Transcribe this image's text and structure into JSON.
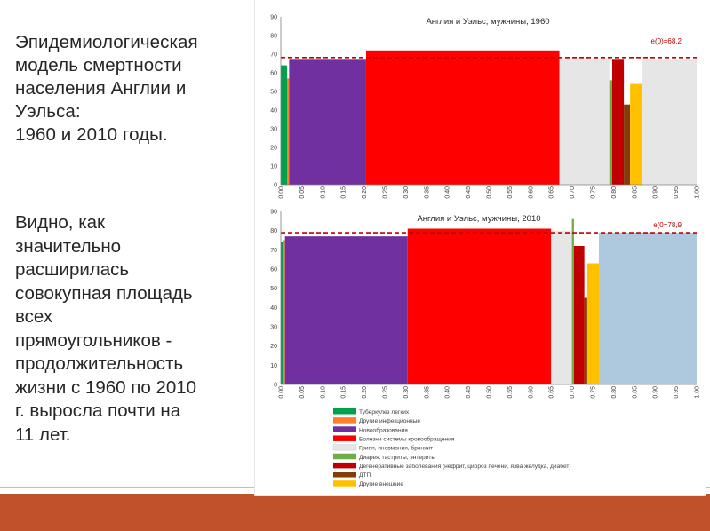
{
  "slide": {
    "title_lines": [
      "Эпидемиологическая",
      "модель смертности",
      "населения Англии и",
      "Уэльса:",
      "1960 и 2010 годы."
    ],
    "body_lines": [
      "Видно, как",
      "значительно",
      "расширилась",
      "совокупная площадь",
      "всех",
      "прямоугольников -",
      "продолжительность",
      "жизни с 1960 по 2010",
      "г.  выросла почти на",
      "11 лет."
    ]
  },
  "colors": {
    "tuberculosis": "#00a14b",
    "other_infectious": "#ff7d2b",
    "neoplasms": "#7030a0",
    "circulatory": "#ff0000",
    "flu_pneumonia": "#e6e6e6",
    "diarrhea": "#70ad47",
    "degenerative": "#c00000",
    "road_accidents": "#843c0c",
    "other_external": "#ffc000",
    "light_blue": "#aec8dd",
    "reference_line": "#c00000",
    "bottom_band": "#c0522b"
  },
  "chart_data": [
    {
      "type": "bar",
      "title": "Англия и Уэльс, мужчины, 1960",
      "annotation": "e(0)=68,2",
      "reference_line_value": 68.2,
      "ylim": [
        0,
        90
      ],
      "yticks": [
        "0",
        "10",
        "20",
        "30",
        "40",
        "50",
        "60",
        "70",
        "80",
        "90"
      ],
      "xlim": [
        0,
        1
      ],
      "xticks": [
        "0.00",
        "0.05",
        "0.10",
        "0.15",
        "0.20",
        "0.25",
        "0.30",
        "0.35",
        "0.40",
        "0.45",
        "0.50",
        "0.55",
        "0.60",
        "0.65",
        "0.70",
        "0.75",
        "0.80",
        "0.85",
        "0.90",
        "0.95",
        "1.00"
      ],
      "grid": false,
      "bars": [
        {
          "x0": 0.0,
          "x1": 0.015,
          "value": 64,
          "color": "tuberculosis"
        },
        {
          "x0": 0.015,
          "x1": 0.02,
          "value": 57,
          "color": "other_infectious"
        },
        {
          "x0": 0.02,
          "x1": 0.205,
          "value": 67,
          "color": "neoplasms"
        },
        {
          "x0": 0.205,
          "x1": 0.67,
          "value": 72,
          "color": "circulatory"
        },
        {
          "x0": 0.67,
          "x1": 0.79,
          "value": 68,
          "color": "flu_pneumonia"
        },
        {
          "x0": 0.79,
          "x1": 0.797,
          "value": 56,
          "color": "diarrhea"
        },
        {
          "x0": 0.797,
          "x1": 0.825,
          "value": 67,
          "color": "degenerative"
        },
        {
          "x0": 0.825,
          "x1": 0.84,
          "value": 43,
          "color": "road_accidents"
        },
        {
          "x0": 0.84,
          "x1": 0.87,
          "value": 54,
          "color": "other_external"
        },
        {
          "x0": 0.87,
          "x1": 1.0,
          "value": 67,
          "color": "flu_pneumonia"
        }
      ]
    },
    {
      "type": "bar",
      "title": "Англия и Уэльс, мужчины, 2010",
      "annotation": "e(0=78,9",
      "reference_line_value": 78.9,
      "ylim": [
        0,
        90
      ],
      "yticks": [
        "0",
        "10",
        "20",
        "30",
        "40",
        "50",
        "60",
        "70",
        "80",
        "90"
      ],
      "xlim": [
        0,
        1
      ],
      "xticks": [
        "0.00",
        "0.05",
        "0.10",
        "0.15",
        "0.20",
        "0.25",
        "0.30",
        "0.35",
        "0.40",
        "0.45",
        "0.50",
        "0.55",
        "0.60",
        "0.65",
        "0.70",
        "0.75",
        "0.80",
        "0.85",
        "0.90",
        "0.95",
        "1.00"
      ],
      "grid": false,
      "bars": [
        {
          "x0": 0.0,
          "x1": 0.005,
          "value": 74,
          "color": "tuberculosis"
        },
        {
          "x0": 0.005,
          "x1": 0.01,
          "value": 75,
          "color": "other_infectious"
        },
        {
          "x0": 0.01,
          "x1": 0.305,
          "value": 77,
          "color": "neoplasms"
        },
        {
          "x0": 0.305,
          "x1": 0.65,
          "value": 81,
          "color": "circulatory"
        },
        {
          "x0": 0.65,
          "x1": 0.7,
          "value": 80,
          "color": "flu_pneumonia"
        },
        {
          "x0": 0.7,
          "x1": 0.705,
          "value": 86,
          "color": "diarrhea"
        },
        {
          "x0": 0.705,
          "x1": 0.73,
          "value": 72,
          "color": "degenerative"
        },
        {
          "x0": 0.73,
          "x1": 0.737,
          "value": 45,
          "color": "road_accidents"
        },
        {
          "x0": 0.737,
          "x1": 0.765,
          "value": 63,
          "color": "other_external"
        },
        {
          "x0": 0.765,
          "x1": 1.0,
          "value": 79,
          "color": "light_blue"
        }
      ]
    }
  ],
  "legend": [
    {
      "label": "Туберкулез легких",
      "color": "tuberculosis"
    },
    {
      "label": "Другие инфекционные",
      "color": "other_infectious"
    },
    {
      "label": "Новообразования",
      "color": "neoplasms"
    },
    {
      "label": "Болезни системы кровообращения",
      "color": "circulatory"
    },
    {
      "label": "Грипп, пневмония, бронхит",
      "color": "flu_pneumonia"
    },
    {
      "label": "Диарея, гастриты, энтериты",
      "color": "diarrhea"
    },
    {
      "label": "Дегенеративные заболевания (нефрит, цирроз печени, язва желудка, диабет)",
      "color": "degenerative"
    },
    {
      "label": "ДТП",
      "color": "road_accidents"
    },
    {
      "label": "Другие внешние",
      "color": "other_external"
    }
  ]
}
